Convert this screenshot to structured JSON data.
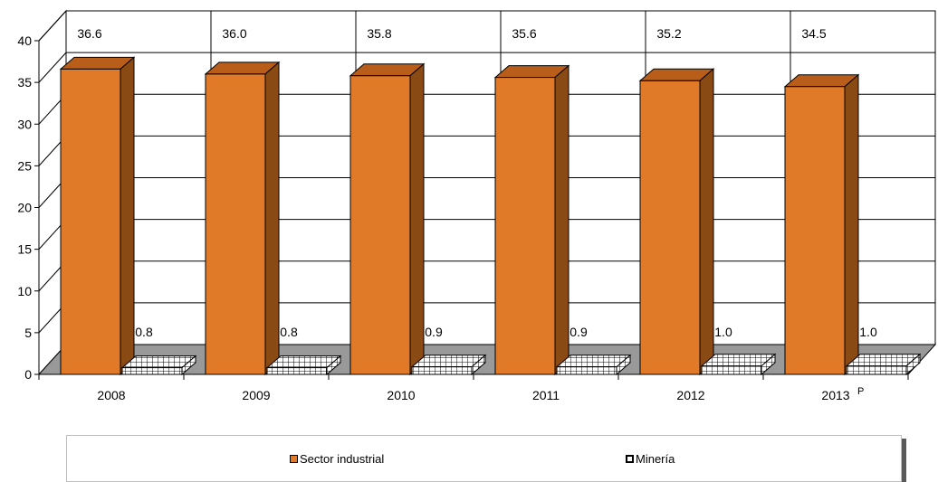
{
  "chart_data": {
    "type": "bar",
    "categories": [
      "2008",
      "2009",
      "2010",
      "2011",
      "2012",
      "2013"
    ],
    "category_superscripts": [
      "",
      "",
      "",
      "",
      "",
      "P"
    ],
    "series": [
      {
        "name": "Sector industrial",
        "values": [
          36.6,
          36.0,
          35.8,
          35.6,
          35.2,
          34.5
        ],
        "color": "#e07a28",
        "side_color": "#8a4a14",
        "top_color": "#b85e1a"
      },
      {
        "name": "Minería",
        "values": [
          0.8,
          0.8,
          0.9,
          0.9,
          1.0,
          1.0
        ],
        "color": "#ffffff",
        "pattern": "grid"
      }
    ],
    "value_labels": [
      [
        "36.6",
        "36.0",
        "35.8",
        "35.6",
        "35.2",
        "34.5"
      ],
      [
        "0.8",
        "0.8",
        "0.9",
        "0.9",
        "1.0",
        "1.0"
      ]
    ],
    "yticks": [
      "0",
      "5",
      "10",
      "15",
      "20",
      "25",
      "30",
      "35",
      "40"
    ],
    "ylim": [
      0,
      40
    ],
    "grid": true,
    "style": "3d-column",
    "floor_color": "#999999",
    "legend_position": "bottom",
    "title": "",
    "xlabel": "",
    "ylabel": ""
  }
}
